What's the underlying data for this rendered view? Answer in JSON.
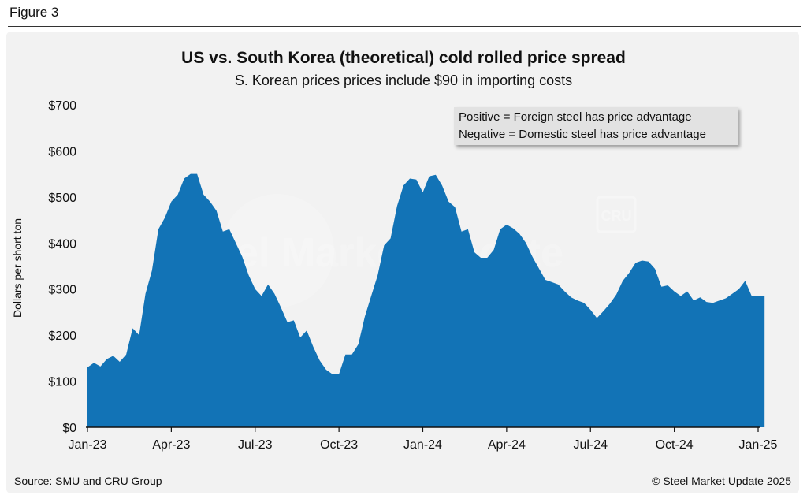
{
  "figure_label": "Figure 3",
  "source_text": "Source: SMU and CRU Group",
  "copyright_text": "© Steel Market Update 2025",
  "watermark": {
    "text": "Steel Market Update",
    "badge": "CRU"
  },
  "colors": {
    "area": "#1273b6",
    "axis": "#111111",
    "frame": "#f2f2f2"
  },
  "chart_data": {
    "type": "area",
    "title": "US vs. South Korea (theoretical) cold rolled price spread",
    "subtitle": "S. Korean prices prices include $90 in importing costs",
    "xlabel": "",
    "ylabel": "Dollars per short ton",
    "ylim": [
      0,
      700
    ],
    "y_ticks": [
      "$0",
      "$100",
      "$200",
      "$300",
      "$400",
      "$500",
      "$600",
      "$700"
    ],
    "y_tick_values": [
      0,
      100,
      200,
      300,
      400,
      500,
      600,
      700
    ],
    "x_ticks": [
      "Jan-23",
      "Apr-23",
      "Jul-23",
      "Oct-23",
      "Jan-24",
      "Apr-24",
      "Jul-24",
      "Oct-24",
      "Jan-25"
    ],
    "x_tick_weeks": [
      0,
      13,
      26,
      39,
      52,
      65,
      78,
      91,
      104
    ],
    "annotation": [
      "Positive = Foreign steel has price advantage",
      "Negative = Domestic steel has price advantage"
    ],
    "series": [
      {
        "name": "Price spread",
        "unit": "week index from Jan-23",
        "x": [
          0,
          1,
          2,
          3,
          4,
          5,
          6,
          7,
          8,
          9,
          10,
          11,
          12,
          13,
          14,
          15,
          16,
          17,
          18,
          19,
          20,
          21,
          22,
          23,
          24,
          25,
          26,
          27,
          28,
          29,
          30,
          31,
          32,
          33,
          34,
          35,
          36,
          37,
          38,
          39,
          40,
          41,
          42,
          43,
          44,
          45,
          46,
          47,
          48,
          49,
          50,
          51,
          52,
          53,
          54,
          55,
          56,
          57,
          58,
          59,
          60,
          61,
          62,
          63,
          64,
          65,
          66,
          67,
          68,
          69,
          70,
          71,
          72,
          73,
          74,
          75,
          76,
          77,
          78,
          79,
          80,
          81,
          82,
          83,
          84,
          85,
          86,
          87,
          88,
          89,
          90,
          91,
          92,
          93,
          94,
          95,
          96,
          97,
          98,
          99,
          100,
          101,
          102,
          103,
          104,
          105
        ],
        "values": [
          130,
          140,
          132,
          148,
          155,
          142,
          158,
          215,
          200,
          290,
          340,
          430,
          455,
          490,
          505,
          540,
          550,
          550,
          505,
          490,
          470,
          425,
          430,
          400,
          370,
          330,
          300,
          285,
          310,
          290,
          260,
          228,
          232,
          195,
          210,
          175,
          145,
          125,
          115,
          115,
          158,
          158,
          180,
          240,
          285,
          330,
          395,
          410,
          480,
          525,
          540,
          538,
          510,
          545,
          548,
          525,
          490,
          478,
          425,
          430,
          380,
          368,
          368,
          385,
          430,
          440,
          432,
          420,
          400,
          370,
          345,
          320,
          315,
          310,
          295,
          282,
          275,
          270,
          255,
          237,
          252,
          268,
          288,
          318,
          335,
          357,
          362,
          360,
          344,
          305,
          308,
          295,
          285,
          295,
          275,
          282,
          272,
          270,
          275,
          280,
          290,
          300,
          318,
          285,
          285,
          285
        ]
      }
    ]
  }
}
